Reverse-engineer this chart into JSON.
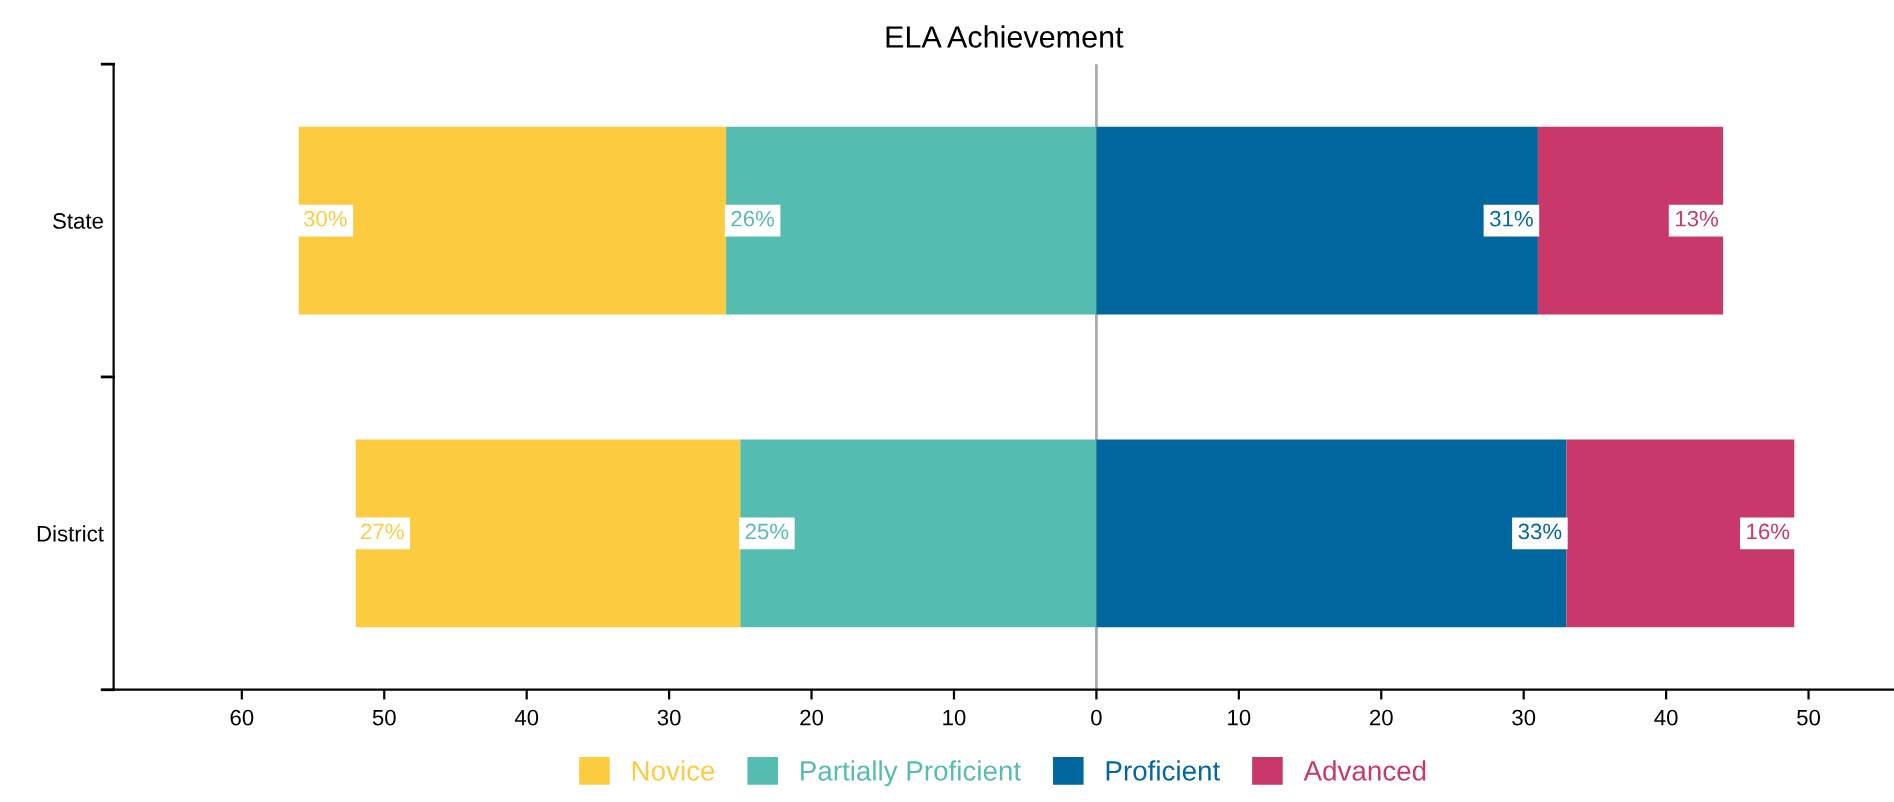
{
  "chart_data": {
    "type": "bar",
    "title": "ELA Achievement",
    "orientation": "horizontal",
    "categories": [
      "State",
      "District"
    ],
    "series": [
      {
        "name": "Novice",
        "color": "#fdcb40",
        "base": [
          -56,
          -52
        ],
        "values": [
          30,
          27
        ],
        "value_labels": [
          "30%",
          "27%"
        ]
      },
      {
        "name": "Partially Proficient",
        "color": "#55bcb2",
        "base": [
          -26,
          -25
        ],
        "values": [
          26,
          25
        ],
        "value_labels": [
          "26%",
          "25%"
        ]
      },
      {
        "name": "Proficient",
        "color": "#02679e",
        "base": [
          0,
          0
        ],
        "values": [
          31,
          33
        ],
        "value_labels": [
          "31%",
          "33%"
        ]
      },
      {
        "name": "Advanced",
        "color": "#c8386a",
        "base": [
          31,
          33
        ],
        "values": [
          13,
          16
        ],
        "value_labels": [
          "13%",
          "16%"
        ]
      }
    ],
    "xlim": [
      -69,
      56
    ],
    "xticks": [
      {
        "value": -60,
        "label": "60"
      },
      {
        "value": -50,
        "label": "50"
      },
      {
        "value": -40,
        "label": "40"
      },
      {
        "value": -30,
        "label": "30"
      },
      {
        "value": -20,
        "label": "20"
      },
      {
        "value": -10,
        "label": "10"
      },
      0,
      10,
      20,
      30,
      40,
      50
    ],
    "ref_lines": [
      {
        "axis": "x",
        "value": 0,
        "color": "#aaaaaa"
      }
    ],
    "legend": "bottom",
    "grid": false
  }
}
